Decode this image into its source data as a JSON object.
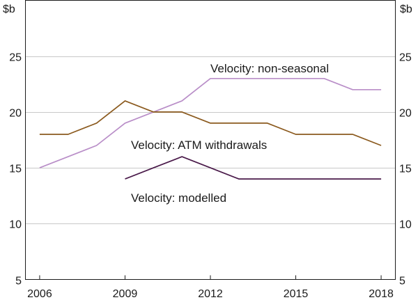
{
  "chart_data": {
    "type": "line",
    "ylabel_left": "$b",
    "ylabel_right": "$b",
    "ylim": [
      5,
      30
    ],
    "yticks": [
      5,
      10,
      15,
      20,
      25
    ],
    "xlim": [
      2005.5,
      2018.5
    ],
    "xticks": [
      2006,
      2009,
      2012,
      2015,
      2018
    ],
    "grid": true,
    "series": [
      {
        "name": "Velocity: non-seasonal",
        "label": "Velocity: non-seasonal",
        "color": "#b98ec8",
        "x": [
          2006,
          2007,
          2008,
          2009,
          2010,
          2011,
          2012,
          2013,
          2014,
          2015,
          2016,
          2017,
          2018
        ],
        "y": [
          15,
          16,
          17,
          19,
          20,
          21,
          23,
          23,
          23,
          23,
          23,
          22,
          22
        ]
      },
      {
        "name": "Velocity: ATM withdrawals",
        "label": "Velocity: ATM withdrawals",
        "color": "#8b5a1e",
        "x": [
          2006,
          2007,
          2008,
          2009,
          2010,
          2011,
          2012,
          2013,
          2014,
          2015,
          2016,
          2017,
          2018
        ],
        "y": [
          18,
          18,
          19,
          21,
          20,
          20,
          19,
          19,
          19,
          18,
          18,
          18,
          17
        ]
      },
      {
        "name": "Velocity: modelled",
        "label": "Velocity: modelled",
        "color": "#4a1a4a",
        "x": [
          2009,
          2010,
          2011,
          2012,
          2013,
          2014,
          2015,
          2016,
          2017,
          2018
        ],
        "y": [
          14,
          15,
          16,
          15,
          14,
          14,
          14,
          14,
          14,
          14
        ]
      }
    ]
  }
}
